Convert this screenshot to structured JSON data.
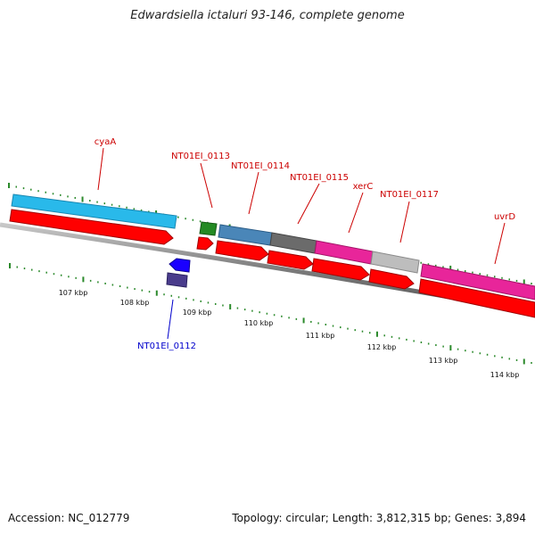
{
  "title": "Edwardsiella ictaluri 93-146, complete genome",
  "accession": "Accession: NC_012779",
  "topology": "Topology: circular; Length: 3,812,315 bp; Genes: 3,894",
  "colors": {
    "forward_cds": "#ff0000",
    "reverse_cds": "#1a00ff",
    "backbone": "#8a8a8a",
    "tick": "#2b8a2b",
    "forward_label": "#cc0000",
    "reverse_label": "#0000cc"
  },
  "ruler_labels": [
    "107 kbp",
    "108 kbp",
    "109 kbp",
    "110 kbp",
    "111 kbp",
    "112 kbp",
    "113 kbp",
    "114 kbp"
  ],
  "gene_labels": {
    "cyaA": "cyaA",
    "nt0113": "NT01EI_0113",
    "nt0114": "NT01EI_0114",
    "nt0115": "NT01EI_0115",
    "xerC": "xerC",
    "nt0117": "NT01EI_0117",
    "uvrD": "uvrD",
    "nt0112": "NT01EI_0112"
  },
  "feature_colors": {
    "cyaA": "#29b9ea",
    "nt0113": "#238a23",
    "nt0114": "#4a86b8",
    "nt0115": "#6b6b6b",
    "xerC": "#e8259a",
    "nt0117": "#bdbdbd",
    "uvrD": "#e8259a",
    "nt0112": "#4a3c8c"
  }
}
